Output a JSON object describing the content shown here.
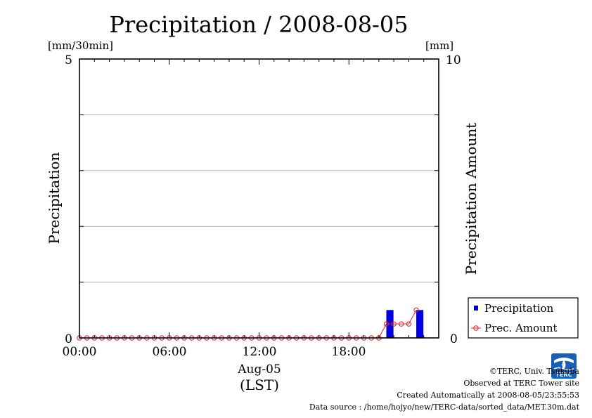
{
  "chart_data": {
    "type": "bar",
    "title": "Precipitation / 2008-08-05",
    "left_axis": {
      "label": "Precipitation",
      "unit": "[mm/30min]",
      "range": [
        0,
        5
      ],
      "tick_labels": [
        "0",
        "5"
      ]
    },
    "right_axis": {
      "label": "Precipitation Amount",
      "unit": "[mm]",
      "range": [
        0,
        10
      ],
      "tick_labels": [
        "0",
        "10"
      ]
    },
    "x_axis": {
      "range_hours": [
        0,
        24
      ],
      "tick_labels": [
        "00:00",
        "06:00",
        "12:00",
        "18:00"
      ],
      "date_label": "Aug-05",
      "tz_label": "(LST)"
    },
    "grid": "horizontal",
    "legend_position": "bottom-right",
    "series": [
      {
        "name": "Precipitation",
        "kind": "bar",
        "axis": "left",
        "color": "#0000dd",
        "x": [
          "20:30",
          "22:30"
        ],
        "values": [
          0.5,
          0.5
        ]
      },
      {
        "name": "Prec. Amount",
        "kind": "line",
        "axis": "right",
        "color": "#e02020",
        "x": [
          "00:00",
          "00:30",
          "01:00",
          "01:30",
          "02:00",
          "02:30",
          "03:00",
          "03:30",
          "04:00",
          "04:30",
          "05:00",
          "05:30",
          "06:00",
          "06:30",
          "07:00",
          "07:30",
          "08:00",
          "08:30",
          "09:00",
          "09:30",
          "10:00",
          "10:30",
          "11:00",
          "11:30",
          "12:00",
          "12:30",
          "13:00",
          "13:30",
          "14:00",
          "14:30",
          "15:00",
          "15:30",
          "16:00",
          "16:30",
          "17:00",
          "17:30",
          "18:00",
          "18:30",
          "19:00",
          "19:30",
          "20:00",
          "20:30",
          "21:00",
          "21:30",
          "22:00",
          "22:30"
        ],
        "values": [
          0,
          0,
          0,
          0,
          0,
          0,
          0,
          0,
          0,
          0,
          0,
          0,
          0,
          0,
          0,
          0,
          0,
          0,
          0,
          0,
          0,
          0,
          0,
          0,
          0,
          0,
          0,
          0,
          0,
          0,
          0,
          0,
          0,
          0,
          0,
          0,
          0,
          0,
          0,
          0,
          0,
          0.5,
          0.5,
          0.5,
          0.5,
          1.0
        ]
      }
    ]
  },
  "credits": {
    "copyright": "©TERC, Univ. Tsukuba",
    "observed": "Observed at TERC Tower site",
    "created": "Created Automatically at 2008-08-05/23:55:53",
    "source": "Data source : /home/hojyo/new/TERC-data/sorted_data/MET.30m.dat",
    "logo_text": "TERC"
  }
}
